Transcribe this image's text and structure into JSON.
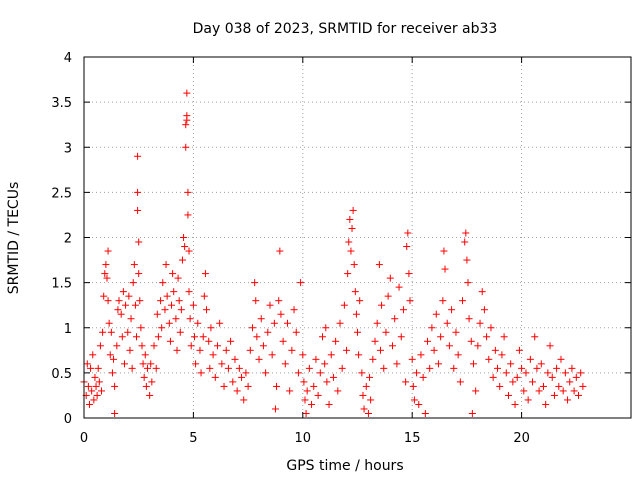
{
  "chart_data": {
    "type": "scatter",
    "title": "Day 038 of 2023, SRMTID for receiver ab33",
    "xlabel": "GPS time / hours",
    "ylabel": "SRMTID / TECUs",
    "xlim": [
      0,
      25
    ],
    "ylim": [
      0,
      4
    ],
    "xticks": [
      0,
      5,
      10,
      15,
      20
    ],
    "xtick_labels": [
      "0",
      "5",
      "10",
      "15",
      "20"
    ],
    "yticks": [
      0,
      0.5,
      1,
      1.5,
      2,
      2.5,
      3,
      3.5,
      4
    ],
    "ytick_labels": [
      "0",
      "0.5",
      "1",
      "1.5",
      "2",
      "2.5",
      "3",
      "3.5",
      "4"
    ],
    "grid": true,
    "marker": "+",
    "color": "#ff0000",
    "series": [
      {
        "name": "SRMTID",
        "points": [
          [
            0.0,
            0.4
          ],
          [
            0.1,
            0.25
          ],
          [
            0.15,
            0.6
          ],
          [
            0.2,
            0.35
          ],
          [
            0.25,
            0.15
          ],
          [
            0.3,
            0.55
          ],
          [
            0.35,
            0.3
          ],
          [
            0.4,
            0.7
          ],
          [
            0.45,
            0.2
          ],
          [
            0.5,
            0.45
          ],
          [
            0.55,
            0.35
          ],
          [
            0.6,
            0.25
          ],
          [
            0.65,
            0.55
          ],
          [
            0.7,
            0.4
          ],
          [
            0.75,
            0.8
          ],
          [
            0.8,
            0.3
          ],
          [
            0.85,
            0.95
          ],
          [
            0.9,
            1.35
          ],
          [
            0.95,
            1.6
          ],
          [
            1.0,
            1.7
          ],
          [
            1.05,
            1.55
          ],
          [
            1.1,
            1.85
          ],
          [
            1.1,
            1.3
          ],
          [
            1.15,
            1.05
          ],
          [
            1.2,
            0.7
          ],
          [
            1.25,
            0.95
          ],
          [
            1.3,
            0.5
          ],
          [
            1.35,
            0.65
          ],
          [
            1.4,
            0.35
          ],
          [
            1.4,
            0.05
          ],
          [
            1.5,
            0.8
          ],
          [
            1.55,
            1.2
          ],
          [
            1.6,
            1.3
          ],
          [
            1.7,
            1.15
          ],
          [
            1.75,
            0.9
          ],
          [
            1.8,
            1.4
          ],
          [
            1.85,
            0.6
          ],
          [
            1.9,
            1.25
          ],
          [
            2.0,
            0.95
          ],
          [
            2.05,
            1.35
          ],
          [
            2.1,
            0.75
          ],
          [
            2.15,
            1.1
          ],
          [
            2.2,
            0.55
          ],
          [
            2.25,
            1.5
          ],
          [
            2.3,
            1.7
          ],
          [
            2.35,
            1.25
          ],
          [
            2.4,
            0.9
          ],
          [
            2.45,
            2.9
          ],
          [
            2.45,
            2.5
          ],
          [
            2.45,
            2.3
          ],
          [
            2.5,
            1.95
          ],
          [
            2.5,
            1.6
          ],
          [
            2.55,
            1.3
          ],
          [
            2.6,
            1.0
          ],
          [
            2.65,
            0.8
          ],
          [
            2.7,
            0.6
          ],
          [
            2.75,
            0.45
          ],
          [
            2.8,
            0.7
          ],
          [
            2.85,
            0.35
          ],
          [
            2.9,
            0.55
          ],
          [
            3.0,
            0.25
          ],
          [
            3.05,
            0.6
          ],
          [
            3.1,
            0.4
          ],
          [
            3.2,
            0.8
          ],
          [
            3.3,
            0.55
          ],
          [
            3.35,
            1.15
          ],
          [
            3.4,
            0.9
          ],
          [
            3.5,
            1.3
          ],
          [
            3.55,
            1.0
          ],
          [
            3.6,
            1.5
          ],
          [
            3.7,
            1.2
          ],
          [
            3.75,
            1.7
          ],
          [
            3.8,
            1.35
          ],
          [
            3.9,
            1.05
          ],
          [
            3.95,
            0.85
          ],
          [
            4.0,
            1.25
          ],
          [
            4.05,
            1.6
          ],
          [
            4.1,
            1.4
          ],
          [
            4.2,
            1.1
          ],
          [
            4.25,
            0.75
          ],
          [
            4.3,
            1.55
          ],
          [
            4.35,
            1.3
          ],
          [
            4.4,
            0.95
          ],
          [
            4.45,
            1.2
          ],
          [
            4.5,
            1.75
          ],
          [
            4.55,
            2.0
          ],
          [
            4.6,
            1.9
          ],
          [
            4.65,
            3.0
          ],
          [
            4.65,
            3.25
          ],
          [
            4.7,
            3.6
          ],
          [
            4.7,
            3.35
          ],
          [
            4.7,
            3.3
          ],
          [
            4.75,
            2.5
          ],
          [
            4.75,
            2.25
          ],
          [
            4.8,
            1.85
          ],
          [
            4.8,
            1.4
          ],
          [
            4.85,
            1.1
          ],
          [
            4.9,
            0.8
          ],
          [
            5.0,
            1.25
          ],
          [
            5.05,
            0.9
          ],
          [
            5.1,
            0.6
          ],
          [
            5.2,
            1.05
          ],
          [
            5.3,
            0.75
          ],
          [
            5.35,
            0.5
          ],
          [
            5.45,
            0.9
          ],
          [
            5.5,
            1.35
          ],
          [
            5.55,
            1.6
          ],
          [
            5.6,
            1.2
          ],
          [
            5.7,
            0.85
          ],
          [
            5.75,
            0.55
          ],
          [
            5.8,
            1.0
          ],
          [
            5.9,
            0.7
          ],
          [
            6.0,
            0.45
          ],
          [
            6.1,
            0.8
          ],
          [
            6.2,
            1.05
          ],
          [
            6.3,
            0.6
          ],
          [
            6.4,
            0.35
          ],
          [
            6.5,
            0.75
          ],
          [
            6.6,
            0.55
          ],
          [
            6.7,
            0.85
          ],
          [
            6.8,
            0.4
          ],
          [
            6.9,
            0.65
          ],
          [
            7.0,
            0.3
          ],
          [
            7.1,
            0.55
          ],
          [
            7.2,
            0.45
          ],
          [
            7.3,
            0.2
          ],
          [
            7.4,
            0.5
          ],
          [
            7.5,
            0.35
          ],
          [
            7.6,
            0.75
          ],
          [
            7.7,
            1.0
          ],
          [
            7.8,
            1.5
          ],
          [
            7.85,
            1.3
          ],
          [
            7.9,
            0.9
          ],
          [
            8.0,
            0.65
          ],
          [
            8.1,
            1.1
          ],
          [
            8.2,
            0.8
          ],
          [
            8.3,
            0.5
          ],
          [
            8.4,
            0.95
          ],
          [
            8.5,
            1.25
          ],
          [
            8.6,
            0.7
          ],
          [
            8.7,
            1.05
          ],
          [
            8.75,
            0.1
          ],
          [
            8.8,
            0.35
          ],
          [
            8.9,
            1.3
          ],
          [
            8.95,
            1.85
          ],
          [
            9.0,
            1.15
          ],
          [
            9.1,
            0.85
          ],
          [
            9.2,
            0.6
          ],
          [
            9.3,
            1.05
          ],
          [
            9.4,
            0.3
          ],
          [
            9.5,
            0.75
          ],
          [
            9.6,
            1.2
          ],
          [
            9.7,
            0.95
          ],
          [
            9.8,
            0.5
          ],
          [
            9.9,
            1.5
          ],
          [
            10.0,
            0.7
          ],
          [
            10.05,
            0.4
          ],
          [
            10.1,
            0.2
          ],
          [
            10.15,
            0.05
          ],
          [
            10.2,
            0.3
          ],
          [
            10.3,
            0.55
          ],
          [
            10.4,
            0.15
          ],
          [
            10.5,
            0.35
          ],
          [
            10.6,
            0.65
          ],
          [
            10.7,
            0.25
          ],
          [
            10.8,
            0.5
          ],
          [
            10.9,
            0.9
          ],
          [
            11.0,
            0.6
          ],
          [
            11.05,
            1.0
          ],
          [
            11.1,
            0.4
          ],
          [
            11.2,
            0.15
          ],
          [
            11.3,
            0.7
          ],
          [
            11.4,
            0.45
          ],
          [
            11.5,
            0.85
          ],
          [
            11.6,
            0.3
          ],
          [
            11.7,
            1.05
          ],
          [
            11.8,
            0.55
          ],
          [
            11.9,
            1.25
          ],
          [
            12.0,
            0.75
          ],
          [
            12.05,
            1.6
          ],
          [
            12.1,
            1.95
          ],
          [
            12.15,
            2.2
          ],
          [
            12.2,
            1.85
          ],
          [
            12.25,
            2.1
          ],
          [
            12.3,
            2.3
          ],
          [
            12.35,
            1.7
          ],
          [
            12.4,
            1.4
          ],
          [
            12.45,
            1.15
          ],
          [
            12.5,
            0.95
          ],
          [
            12.55,
            0.7
          ],
          [
            12.6,
            1.3
          ],
          [
            12.7,
            0.5
          ],
          [
            12.75,
            0.25
          ],
          [
            12.8,
            0.1
          ],
          [
            12.9,
            0.35
          ],
          [
            13.0,
            0.05
          ],
          [
            13.05,
            0.45
          ],
          [
            13.1,
            0.2
          ],
          [
            13.2,
            0.65
          ],
          [
            13.3,
            0.85
          ],
          [
            13.4,
            1.05
          ],
          [
            13.5,
            1.7
          ],
          [
            13.55,
            0.75
          ],
          [
            13.6,
            1.25
          ],
          [
            13.7,
            0.55
          ],
          [
            13.8,
            0.95
          ],
          [
            13.9,
            1.35
          ],
          [
            14.0,
            1.55
          ],
          [
            14.1,
            0.8
          ],
          [
            14.2,
            1.1
          ],
          [
            14.3,
            0.6
          ],
          [
            14.4,
            1.45
          ],
          [
            14.5,
            0.9
          ],
          [
            14.6,
            1.2
          ],
          [
            14.7,
            0.4
          ],
          [
            14.75,
            1.9
          ],
          [
            14.8,
            2.05
          ],
          [
            14.85,
            1.6
          ],
          [
            14.9,
            1.3
          ],
          [
            15.0,
            0.65
          ],
          [
            15.05,
            0.35
          ],
          [
            15.1,
            0.2
          ],
          [
            15.2,
            0.5
          ],
          [
            15.3,
            0.15
          ],
          [
            15.4,
            0.7
          ],
          [
            15.5,
            0.45
          ],
          [
            15.6,
            0.05
          ],
          [
            15.7,
            0.85
          ],
          [
            15.8,
            0.55
          ],
          [
            15.9,
            1.0
          ],
          [
            16.0,
            0.75
          ],
          [
            16.1,
            1.15
          ],
          [
            16.2,
            0.6
          ],
          [
            16.3,
            0.9
          ],
          [
            16.4,
            1.3
          ],
          [
            16.45,
            1.85
          ],
          [
            16.5,
            1.65
          ],
          [
            16.6,
            1.05
          ],
          [
            16.7,
            0.8
          ],
          [
            16.8,
            1.2
          ],
          [
            16.9,
            0.55
          ],
          [
            17.0,
            0.95
          ],
          [
            17.1,
            0.7
          ],
          [
            17.2,
            0.4
          ],
          [
            17.3,
            1.3
          ],
          [
            17.4,
            1.95
          ],
          [
            17.45,
            2.05
          ],
          [
            17.5,
            1.75
          ],
          [
            17.55,
            1.5
          ],
          [
            17.6,
            1.1
          ],
          [
            17.7,
            0.85
          ],
          [
            17.75,
            0.05
          ],
          [
            17.8,
            0.6
          ],
          [
            17.9,
            0.3
          ],
          [
            18.0,
            0.8
          ],
          [
            18.1,
            1.05
          ],
          [
            18.2,
            1.4
          ],
          [
            18.3,
            1.2
          ],
          [
            18.4,
            0.9
          ],
          [
            18.5,
            0.65
          ],
          [
            18.6,
            1.0
          ],
          [
            18.7,
            0.45
          ],
          [
            18.8,
            0.75
          ],
          [
            18.9,
            0.55
          ],
          [
            19.0,
            0.35
          ],
          [
            19.1,
            0.7
          ],
          [
            19.2,
            0.9
          ],
          [
            19.3,
            0.5
          ],
          [
            19.4,
            0.25
          ],
          [
            19.5,
            0.6
          ],
          [
            19.6,
            0.4
          ],
          [
            19.7,
            0.15
          ],
          [
            19.8,
            0.45
          ],
          [
            19.9,
            0.75
          ],
          [
            20.0,
            0.55
          ],
          [
            20.1,
            0.3
          ],
          [
            20.2,
            0.5
          ],
          [
            20.3,
            0.2
          ],
          [
            20.4,
            0.65
          ],
          [
            20.5,
            0.4
          ],
          [
            20.6,
            0.9
          ],
          [
            20.7,
            0.55
          ],
          [
            20.8,
            0.3
          ],
          [
            20.9,
            0.6
          ],
          [
            21.0,
            0.35
          ],
          [
            21.1,
            0.15
          ],
          [
            21.2,
            0.5
          ],
          [
            21.3,
            0.8
          ],
          [
            21.4,
            0.45
          ],
          [
            21.5,
            0.25
          ],
          [
            21.6,
            0.55
          ],
          [
            21.7,
            0.35
          ],
          [
            21.8,
            0.65
          ],
          [
            21.9,
            0.3
          ],
          [
            22.0,
            0.5
          ],
          [
            22.1,
            0.2
          ],
          [
            22.2,
            0.4
          ],
          [
            22.3,
            0.55
          ],
          [
            22.4,
            0.3
          ],
          [
            22.5,
            0.45
          ],
          [
            22.6,
            0.25
          ],
          [
            22.7,
            0.5
          ],
          [
            22.8,
            0.35
          ]
        ]
      }
    ]
  }
}
